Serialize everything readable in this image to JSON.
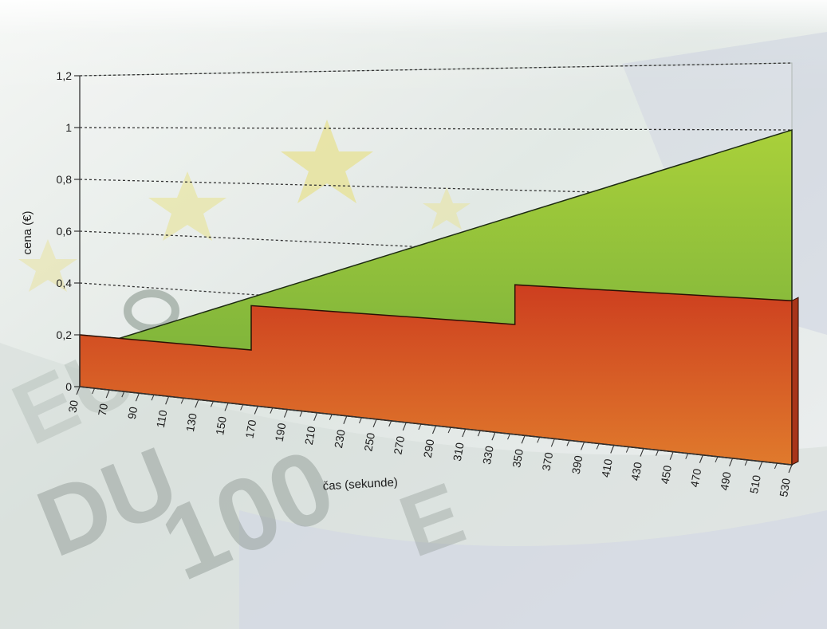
{
  "chart_data": {
    "type": "area",
    "title": "",
    "xlabel": "čas (sekunde)",
    "ylabel": "cena (€)",
    "x_ticks": [
      "30",
      "70",
      "90",
      "110",
      "130",
      "150",
      "170",
      "190",
      "210",
      "230",
      "250",
      "270",
      "290",
      "310",
      "330",
      "350",
      "370",
      "390",
      "410",
      "430",
      "450",
      "470",
      "490",
      "510",
      "530"
    ],
    "y_ticks": [
      "0",
      "0,2",
      "0,4",
      "0,6",
      "0,8",
      "1",
      "1,2"
    ],
    "ylim": [
      0,
      1.2
    ],
    "grid": "dashed horizontal",
    "series": [
      {
        "color": "#8fc13a",
        "x": [
          0,
          30,
          540
        ],
        "values": [
          0,
          0.2,
          1.0
        ]
      },
      {
        "color": "#d24a1e",
        "x": [
          0,
          130,
          130,
          330,
          330,
          540
        ],
        "values": [
          0.2,
          0.2,
          0.36,
          0.36,
          0.49,
          0.49
        ]
      }
    ]
  },
  "colors": {
    "green_top": "#a9d03a",
    "green_bottom": "#6ca83c",
    "red_top": "#cd3e1f",
    "red_bottom": "#e07a2c",
    "grid": "#333333"
  },
  "background_icons": [
    "euro-banknote-image"
  ]
}
